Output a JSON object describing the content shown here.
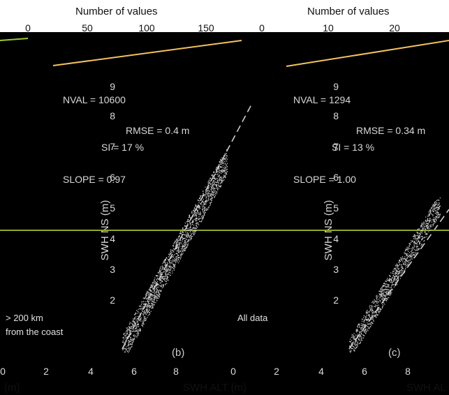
{
  "chart_data": [
    {
      "type": "scatter",
      "title": "",
      "top_axis_label": "Number of values",
      "top_axis_ticks": [
        "0",
        "50",
        "100",
        "150"
      ],
      "xlabel": "SWH ALT (m)",
      "ylabel": "SWH NS (m)",
      "xlim": [
        0,
        10
      ],
      "ylim": [
        0,
        10
      ],
      "x_ticks": [
        "0",
        "2",
        "4",
        "6",
        "8"
      ],
      "y_ticks": [
        "2",
        "3",
        "4",
        "5",
        "6",
        "7",
        "8",
        "9"
      ],
      "panel_label": "(b)",
      "stats": [
        {
          "label": "NVAL",
          "value": "10600"
        },
        {
          "label": "RMSE",
          "value": "0.4 m"
        },
        {
          "label": "SI",
          "value": "17 %"
        },
        {
          "label": "SLOPE",
          "value": "0.97"
        }
      ],
      "legend": [
        {
          "label": "> 200 km",
          "color": "#d93b3b"
        },
        {
          "label": "from the coast",
          "color": "#2f6fd6"
        }
      ]
    },
    {
      "type": "scatter",
      "title": "",
      "top_axis_label": "Number of values",
      "top_axis_ticks": [
        "0",
        "10",
        "20"
      ],
      "xlabel": "SWH ALT (m)",
      "ylabel": "SWH NS (m)",
      "xlim": [
        0,
        10
      ],
      "ylim": [
        0,
        10
      ],
      "x_ticks": [
        "0",
        "2",
        "4",
        "6",
        "8"
      ],
      "y_ticks": [
        "2",
        "3",
        "4",
        "5",
        "6",
        "7",
        "8",
        "9"
      ],
      "panel_label": "(c)",
      "stats": [
        {
          "label": "NVAL",
          "value": "1294"
        },
        {
          "label": "RMSE",
          "value": "0.34 m"
        },
        {
          "label": "SI",
          "value": "13 %"
        },
        {
          "label": "SLOPE",
          "value": "1.00"
        }
      ],
      "legend": [
        {
          "label": "All data",
          "color": "#111111"
        }
      ]
    }
  ],
  "labels": {
    "top_left": "Number of values",
    "top_right": "Number of values",
    "bottom_left": "(m)",
    "bottom_middle": "SWH ALT (m)",
    "bottom_right": "SWH AL"
  }
}
